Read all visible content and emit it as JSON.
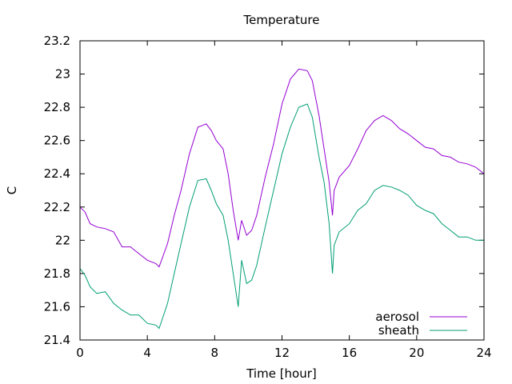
{
  "chart_data": {
    "type": "line",
    "title": "Temperature",
    "xlabel": "Time [hour]",
    "ylabel": "C",
    "xlim": [
      0,
      24
    ],
    "ylim": [
      21.4,
      23.2
    ],
    "xticks": [
      0,
      4,
      8,
      12,
      16,
      20,
      24
    ],
    "yticks": [
      21.4,
      21.6,
      21.8,
      22,
      22.2,
      22.4,
      22.6,
      22.8,
      23,
      23.2
    ],
    "xtick_labels": [
      "0",
      "4",
      "8",
      "12",
      "16",
      "20",
      "24"
    ],
    "ytick_labels": [
      "21.4",
      "21.6",
      "21.8",
      "22",
      "22.2",
      "22.4",
      "22.6",
      "22.8",
      "23",
      "23.2"
    ],
    "grid": false,
    "legend_position": "bottom-right",
    "series": [
      {
        "name": "aerosol",
        "color": "#9400d3",
        "x": [
          0,
          0.3,
          0.6,
          1,
          1.5,
          2,
          2.5,
          3,
          3.5,
          4,
          4.5,
          4.7,
          5.2,
          5.6,
          6,
          6.5,
          7,
          7.5,
          7.8,
          8.1,
          8.5,
          8.8,
          9.1,
          9.4,
          9.6,
          9.9,
          10.2,
          10.5,
          11,
          11.5,
          12,
          12.5,
          13,
          13.5,
          13.8,
          14.2,
          14.5,
          14.8,
          15,
          15.1,
          15.4,
          16,
          16.5,
          17,
          17.5,
          18,
          18.5,
          19,
          19.5,
          20,
          20.5,
          21,
          21.5,
          22,
          22.5,
          23,
          23.5,
          24
        ],
        "values": [
          22.2,
          22.17,
          22.1,
          22.08,
          22.07,
          22.05,
          21.96,
          21.96,
          21.92,
          21.88,
          21.86,
          21.84,
          21.98,
          22.15,
          22.3,
          22.52,
          22.68,
          22.7,
          22.66,
          22.6,
          22.55,
          22.4,
          22.18,
          22.0,
          22.12,
          22.03,
          22.06,
          22.15,
          22.38,
          22.58,
          22.82,
          22.97,
          23.03,
          23.02,
          22.96,
          22.75,
          22.55,
          22.35,
          22.15,
          22.3,
          22.38,
          22.45,
          22.55,
          22.66,
          22.72,
          22.75,
          22.72,
          22.67,
          22.64,
          22.6,
          22.56,
          22.55,
          22.51,
          22.5,
          22.47,
          22.46,
          22.44,
          22.4
        ]
      },
      {
        "name": "sheath",
        "color": "#009e73",
        "x": [
          0,
          0.3,
          0.6,
          1,
          1.5,
          2,
          2.5,
          3,
          3.5,
          4,
          4.5,
          4.7,
          5.2,
          5.6,
          6,
          6.5,
          7,
          7.5,
          7.8,
          8.1,
          8.5,
          8.8,
          9.1,
          9.4,
          9.6,
          9.9,
          10.2,
          10.5,
          11,
          11.5,
          12,
          12.5,
          13,
          13.5,
          13.8,
          14.2,
          14.5,
          14.8,
          15,
          15.1,
          15.4,
          16,
          16.5,
          17,
          17.5,
          18,
          18.5,
          19,
          19.5,
          20,
          20.5,
          21,
          21.5,
          22,
          22.5,
          23,
          23.5,
          24
        ],
        "values": [
          21.83,
          21.79,
          21.72,
          21.68,
          21.69,
          21.62,
          21.58,
          21.55,
          21.55,
          21.5,
          21.49,
          21.47,
          21.62,
          21.8,
          21.98,
          22.2,
          22.36,
          22.37,
          22.3,
          22.22,
          22.15,
          22.0,
          21.8,
          21.6,
          21.88,
          21.74,
          21.76,
          21.85,
          22.08,
          22.3,
          22.52,
          22.68,
          22.8,
          22.82,
          22.74,
          22.5,
          22.35,
          22.1,
          21.8,
          21.97,
          22.05,
          22.1,
          22.18,
          22.22,
          22.3,
          22.33,
          22.32,
          22.3,
          22.27,
          22.21,
          22.18,
          22.16,
          22.1,
          22.06,
          22.02,
          22.02,
          22.0,
          22.0
        ]
      }
    ]
  }
}
